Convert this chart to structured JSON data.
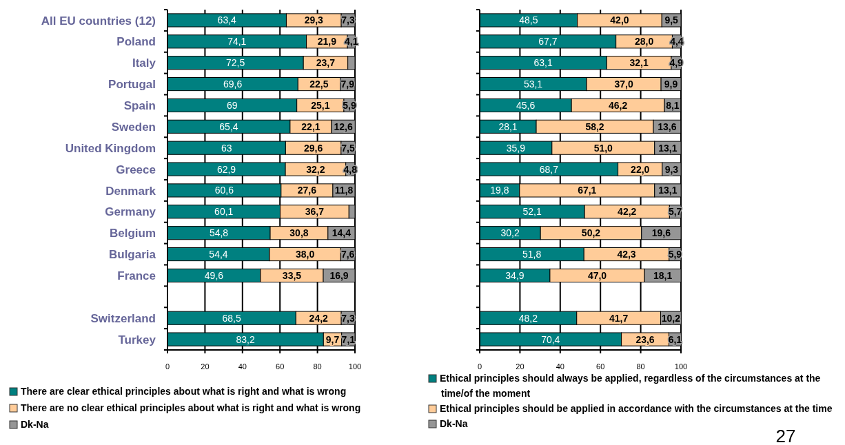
{
  "chart_data": [
    {
      "type": "bar",
      "orientation": "horizontal",
      "stacked": true,
      "categories": [
        "All EU countries (12)",
        "Poland",
        "Italy",
        "Portugal",
        "Spain",
        "Sweden",
        "United Kingdom",
        "Greece",
        "Denmark",
        "Germany",
        "Belgium",
        "Bulgaria",
        "France",
        null,
        "Switzerland",
        "Turkey"
      ],
      "series": [
        {
          "name": "There are clear ethical principles about what is right and what is wrong",
          "color": "#008080",
          "values": [
            63.4,
            74.1,
            72.5,
            69.6,
            69,
            65.4,
            63,
            62.9,
            60.6,
            60.1,
            54.8,
            54.4,
            49.6,
            null,
            68.5,
            83.2
          ],
          "value_labels": [
            "63,4",
            "74,1",
            "72,5",
            "69,6",
            "69",
            "65,4",
            "63",
            "62,9",
            "60,6",
            "60,1",
            "54,8",
            "54,4",
            "49,6",
            null,
            "68,5",
            "83,2"
          ]
        },
        {
          "name": "There are no clear ethical principles about what is right and what is wrong",
          "color": "#ffcc99",
          "values": [
            29.3,
            21.9,
            23.7,
            22.5,
            25.1,
            22.1,
            29.6,
            32.2,
            27.6,
            36.7,
            30.8,
            38.0,
            33.5,
            null,
            24.2,
            9.7
          ],
          "value_labels": [
            "29,3",
            "21,9",
            "23,7",
            "22,5",
            "25,1",
            "22,1",
            "29,6",
            "32,2",
            "27,6",
            "36,7",
            "30,8",
            "38,0",
            "33,5",
            null,
            "24,2",
            "9,7"
          ]
        },
        {
          "name": "Dk-Na",
          "color": "#969696",
          "values": [
            7.3,
            4.1,
            3.8,
            7.9,
            5.9,
            12.6,
            7.5,
            4.8,
            11.8,
            3.2,
            14.4,
            7.6,
            16.9,
            null,
            7.3,
            7.1
          ],
          "value_labels": [
            "7,3",
            "4,1",
            null,
            "7,9",
            "5,9",
            "12,6",
            "7,5",
            "4,8",
            "11,8",
            null,
            "14,4",
            "7,6",
            "16,9",
            null,
            "7,3",
            "7,1"
          ]
        }
      ],
      "xlim": [
        0,
        100
      ],
      "xticks": [
        0,
        20,
        40,
        60,
        80,
        100
      ],
      "grid": "x",
      "legend": "bottom"
    },
    {
      "type": "bar",
      "orientation": "horizontal",
      "stacked": true,
      "categories": [
        null,
        null,
        null,
        null,
        null,
        null,
        null,
        null,
        null,
        null,
        null,
        null,
        null,
        null,
        null,
        null
      ],
      "series": [
        {
          "name": "Ethical principles should always be applied, regardless of the circumstances at the time/of the moment",
          "color": "#008080",
          "values": [
            48.5,
            67.7,
            63.1,
            53.1,
            45.6,
            28.1,
            35.9,
            68.7,
            19.8,
            52.1,
            30.2,
            51.8,
            34.9,
            null,
            48.2,
            70.4
          ],
          "value_labels": [
            "48,5",
            "67,7",
            "63,1",
            "53,1",
            "45,6",
            "28,1",
            "35,9",
            "68,7",
            "19,8",
            "52,1",
            "30,2",
            "51,8",
            "34,9",
            null,
            "48,2",
            "70,4"
          ]
        },
        {
          "name": "Ethical principles should be applied in accordance with the circumstances at the time",
          "color": "#ffcc99",
          "values": [
            42.0,
            28.0,
            32.1,
            37.0,
            46.2,
            58.2,
            51.0,
            22.0,
            67.1,
            42.2,
            50.2,
            42.3,
            47.0,
            null,
            41.7,
            23.6
          ],
          "value_labels": [
            "42,0",
            "28,0",
            "32,1",
            "37,0",
            "46,2",
            "58,2",
            "51,0",
            "22,0",
            "67,1",
            "42,2",
            "50,2",
            "42,3",
            "47,0",
            null,
            "41,7",
            "23,6"
          ]
        },
        {
          "name": "Dk-Na",
          "color": "#969696",
          "values": [
            9.5,
            4.4,
            4.9,
            9.9,
            8.1,
            13.6,
            13.1,
            9.3,
            13.1,
            5.7,
            19.6,
            5.9,
            18.1,
            null,
            10.2,
            6.1
          ],
          "value_labels": [
            "9,5",
            "4,4",
            "4,9",
            "9,9",
            "8,1",
            "13,6",
            "13,1",
            "9,3",
            "13,1",
            "5,7",
            "19,6",
            "5,9",
            "18,1",
            null,
            "10,2",
            "6,1"
          ]
        }
      ],
      "xlim": [
        0,
        100
      ],
      "xticks": [
        0,
        20,
        40,
        60,
        80,
        100
      ],
      "grid": "x",
      "legend": "bottom",
      "annotations": [
        "27"
      ]
    }
  ]
}
